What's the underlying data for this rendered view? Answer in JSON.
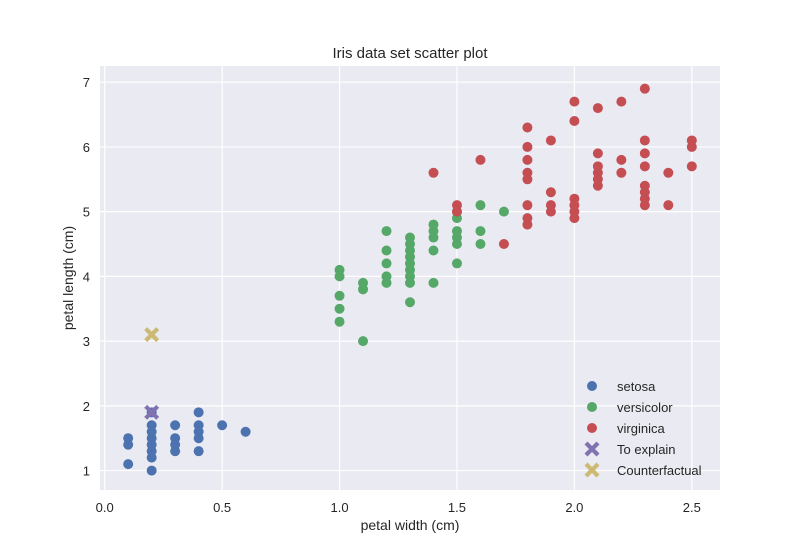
{
  "chart_data": {
    "type": "scatter",
    "title": "Iris data set scatter plot",
    "xlabel": "petal width (cm)",
    "ylabel": "petal length (cm)",
    "xlim": [
      -0.02,
      2.62
    ],
    "ylim": [
      0.7,
      7.25
    ],
    "xticks": [
      0.0,
      0.5,
      1.0,
      1.5,
      2.0,
      2.5
    ],
    "xtick_labels": [
      "0.0",
      "0.5",
      "1.0",
      "1.5",
      "2.0",
      "2.5"
    ],
    "yticks": [
      1,
      2,
      3,
      4,
      5,
      6,
      7
    ],
    "ytick_labels": [
      "1",
      "2",
      "3",
      "4",
      "5",
      "6",
      "7"
    ],
    "grid": true,
    "legend_position": "lower-right",
    "series": [
      {
        "name": "setosa",
        "marker": "circle",
        "color": "#4c72b0",
        "points": [
          [
            0.1,
            1.5
          ],
          [
            0.1,
            1.4
          ],
          [
            0.1,
            1.1
          ],
          [
            0.2,
            1.4
          ],
          [
            0.2,
            1.3
          ],
          [
            0.2,
            1.5
          ],
          [
            0.2,
            1.6
          ],
          [
            0.2,
            1.2
          ],
          [
            0.2,
            1.7
          ],
          [
            0.2,
            1.0
          ],
          [
            0.2,
            1.9
          ],
          [
            0.3,
            1.3
          ],
          [
            0.3,
            1.4
          ],
          [
            0.3,
            1.5
          ],
          [
            0.3,
            1.7
          ],
          [
            0.4,
            1.7
          ],
          [
            0.4,
            1.5
          ],
          [
            0.4,
            1.9
          ],
          [
            0.4,
            1.6
          ],
          [
            0.4,
            1.3
          ],
          [
            0.5,
            1.7
          ],
          [
            0.6,
            1.6
          ]
        ]
      },
      {
        "name": "versicolor",
        "marker": "circle",
        "color": "#55a868",
        "points": [
          [
            1.0,
            3.5
          ],
          [
            1.0,
            3.3
          ],
          [
            1.0,
            4.0
          ],
          [
            1.0,
            4.1
          ],
          [
            1.0,
            3.7
          ],
          [
            1.1,
            3.0
          ],
          [
            1.1,
            3.9
          ],
          [
            1.1,
            3.8
          ],
          [
            1.2,
            4.7
          ],
          [
            1.2,
            4.4
          ],
          [
            1.2,
            4.0
          ],
          [
            1.2,
            4.2
          ],
          [
            1.2,
            3.9
          ],
          [
            1.3,
            4.0
          ],
          [
            1.3,
            3.6
          ],
          [
            1.3,
            4.4
          ],
          [
            1.3,
            4.1
          ],
          [
            1.3,
            4.3
          ],
          [
            1.3,
            4.5
          ],
          [
            1.3,
            4.2
          ],
          [
            1.3,
            4.6
          ],
          [
            1.3,
            3.9
          ],
          [
            1.4,
            4.7
          ],
          [
            1.4,
            4.4
          ],
          [
            1.4,
            4.8
          ],
          [
            1.4,
            4.6
          ],
          [
            1.4,
            3.9
          ],
          [
            1.5,
            4.5
          ],
          [
            1.5,
            4.9
          ],
          [
            1.5,
            4.6
          ],
          [
            1.5,
            4.2
          ],
          [
            1.5,
            4.7
          ],
          [
            1.5,
            5.0
          ],
          [
            1.6,
            4.5
          ],
          [
            1.6,
            5.1
          ],
          [
            1.6,
            4.7
          ],
          [
            1.7,
            5.0
          ]
        ]
      },
      {
        "name": "virginica",
        "marker": "circle",
        "color": "#c44e52",
        "points": [
          [
            1.4,
            5.6
          ],
          [
            1.5,
            5.0
          ],
          [
            1.5,
            5.1
          ],
          [
            1.6,
            5.8
          ],
          [
            1.7,
            4.5
          ],
          [
            1.8,
            6.3
          ],
          [
            1.8,
            5.8
          ],
          [
            1.8,
            5.5
          ],
          [
            1.8,
            5.6
          ],
          [
            1.8,
            6.0
          ],
          [
            1.8,
            5.1
          ],
          [
            1.8,
            4.8
          ],
          [
            1.8,
            4.9
          ],
          [
            1.9,
            6.1
          ],
          [
            1.9,
            5.3
          ],
          [
            1.9,
            5.1
          ],
          [
            1.9,
            5.0
          ],
          [
            2.0,
            6.7
          ],
          [
            2.0,
            6.4
          ],
          [
            2.0,
            5.1
          ],
          [
            2.0,
            5.2
          ],
          [
            2.0,
            5.0
          ],
          [
            2.0,
            4.9
          ],
          [
            2.1,
            6.6
          ],
          [
            2.1,
            5.9
          ],
          [
            2.1,
            5.7
          ],
          [
            2.1,
            5.6
          ],
          [
            2.1,
            5.5
          ],
          [
            2.1,
            5.4
          ],
          [
            2.2,
            6.7
          ],
          [
            2.2,
            5.8
          ],
          [
            2.2,
            5.6
          ],
          [
            2.3,
            6.9
          ],
          [
            2.3,
            6.1
          ],
          [
            2.3,
            5.9
          ],
          [
            2.3,
            5.7
          ],
          [
            2.3,
            5.4
          ],
          [
            2.3,
            5.3
          ],
          [
            2.3,
            5.2
          ],
          [
            2.3,
            5.1
          ],
          [
            2.4,
            5.6
          ],
          [
            2.4,
            5.1
          ],
          [
            2.5,
            6.1
          ],
          [
            2.5,
            6.0
          ],
          [
            2.5,
            5.7
          ]
        ]
      },
      {
        "name": "To explain",
        "marker": "x",
        "color": "#8172b2",
        "points": [
          [
            0.2,
            1.9
          ]
        ]
      },
      {
        "name": "Counterfactual",
        "marker": "x",
        "color": "#ccb974",
        "points": [
          [
            0.2,
            3.1
          ]
        ]
      }
    ]
  }
}
